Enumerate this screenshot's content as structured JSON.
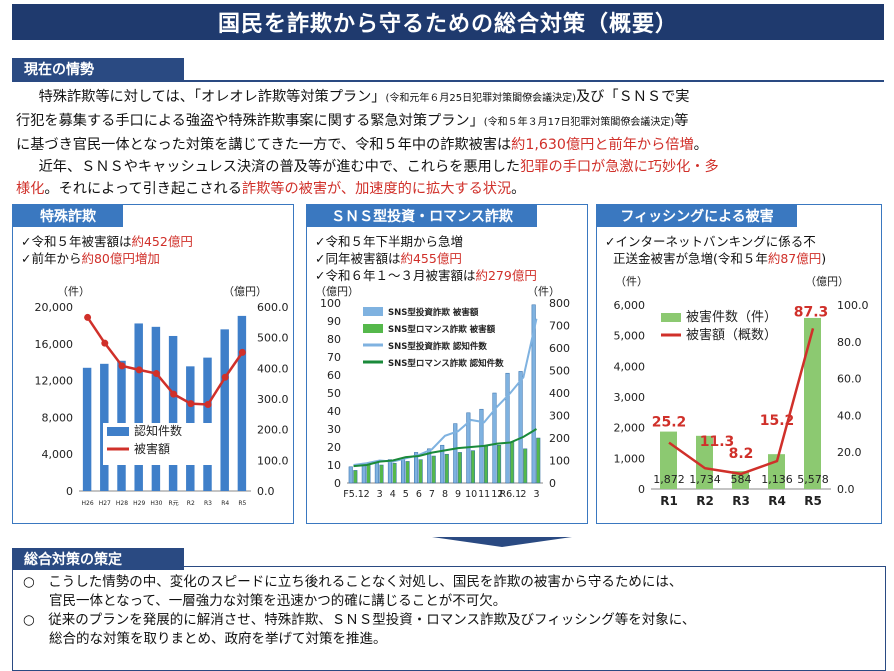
{
  "title": "国民を詐欺から守るための総合対策（概要）",
  "situation": {
    "heading": "現在の情勢",
    "p1_a": "特殊詐欺等に対しては、「オレオレ詐欺等対策プラン」",
    "p1_note1": "(令和元年６月25日犯罪対策閣僚会議決定)",
    "p1_b": "及び「ＳＮＳで実",
    "p2_a": "行犯を募集する手口による強盗や特殊詐欺事案に関する緊急対策プラン」",
    "p2_note2": "(令和５年３月17日犯罪対策閣僚会議決定)",
    "p2_b": "等",
    "p3_a": "に基づき官民一体となった対策を講じてきた一方で、令和５年中の詐欺被害は",
    "p3_red": "約1,630億円と前年から倍増",
    "p3_b": "。",
    "p4_a": "近年、ＳＮＳやキャッシュレス決済の普及等が進む中で、これらを悪用した",
    "p4_red": "犯罪の手口が急激に巧妙化・多",
    "p5_red1": "様化",
    "p5_a": "。それによって引き起こされる",
    "p5_red2": "詐欺等の被害が、加速度的に拡大する状況",
    "p5_b": "。"
  },
  "panel1": {
    "title": "特殊詐欺",
    "b1_a": "✓令和５年被害額は",
    "b1_red": "約452億円",
    "b2_a": "✓前年から",
    "b2_red": "約80億円増加"
  },
  "panel2": {
    "title": "ＳＮＳ型投資・ロマンス詐欺",
    "b1": "✓令和５年下半期から急増",
    "b2_a": "✓同年被害額は",
    "b2_red": "約455億円",
    "b3_a": "✓令和６年１～３月被害額は",
    "b3_red": "約279億円"
  },
  "panel3": {
    "title": "フィッシングによる被害",
    "b1": "✓インターネットバンキングに係る不",
    "b2_a": "正送金被害が急増(令和５年",
    "b2_red": "約87億円",
    "b2_b": ")"
  },
  "measures": {
    "heading": "総合対策の策定",
    "l1": "○　こうした情勢の中、変化のスピードに立ち後れることなく対処し、国民を詐欺の被害から守るためには、",
    "l2": "官民一体となって、一層強力な対策を迅速かつ的確に講じることが不可欠。",
    "l3": "○　従来のプランを発展的に解消させ、特殊詐欺、ＳＮＳ型投資・ロマンス詐欺及びフィッシング等を対象に、",
    "l4": "総合的な対策を取りまとめ、政府を挙げて対策を推進。"
  },
  "colors": {
    "navy": "#1f3a6e",
    "panel_blue": "#3a78c0",
    "red": "#d0302a",
    "green": "#8cc971"
  },
  "chart_data": [
    {
      "type": "bar",
      "categories": [
        "H26",
        "H27",
        "H28",
        "H29",
        "H30",
        "R元",
        "R2",
        "R3",
        "R4",
        "R5"
      ],
      "y_unit_left": "（件）",
      "y_unit_right": "（億円）",
      "yticks_left": [
        "0",
        "4,000",
        "8,000",
        "12,000",
        "16,000",
        "20,000"
      ],
      "yticks_right": [
        "0.0",
        "100.0",
        "200.0",
        "300.0",
        "400.0",
        "500.0",
        "600.0"
      ],
      "ylim_left": [
        0,
        20000
      ],
      "ylim_right": [
        0,
        600
      ],
      "series": [
        {
          "name": "認知件数",
          "kind": "bar",
          "axis": "left",
          "color": "#3f7fc9",
          "values": [
            13392,
            13824,
            14154,
            18212,
            17844,
            16851,
            13550,
            14498,
            17570,
            19033
          ]
        },
        {
          "name": "被害額",
          "kind": "line",
          "axis": "right",
          "color": "#d0302a",
          "values": [
            566,
            482,
            408,
            395,
            383,
            316,
            285,
            282,
            371,
            452
          ]
        }
      ],
      "legend_position": "center-left"
    },
    {
      "type": "bar",
      "categories": [
        "F5.1",
        "2",
        "3",
        "4",
        "5",
        "6",
        "7",
        "8",
        "9",
        "10",
        "11",
        "12",
        "R6.1",
        "2",
        "3"
      ],
      "y_unit_left": "（億円）",
      "y_unit_right": "（件）",
      "yticks_left": [
        "0",
        "10",
        "20",
        "30",
        "40",
        "50",
        "60",
        "70",
        "80",
        "90",
        "100"
      ],
      "yticks_right": [
        "0",
        "100",
        "200",
        "300",
        "400",
        "500",
        "600",
        "700",
        "800"
      ],
      "ylim_left": [
        0,
        100
      ],
      "ylim_right": [
        0,
        800
      ],
      "series": [
        {
          "name": "SNS型投資詐欺 被害額",
          "kind": "bar",
          "axis": "left",
          "color": "#7fb2e0",
          "values": [
            9,
            11,
            12,
            13,
            14,
            17,
            19,
            21,
            33,
            39,
            41,
            50,
            61,
            62,
            99
          ]
        },
        {
          "name": "SNS型ロマンス詐欺 被害額",
          "kind": "bar",
          "axis": "left",
          "color": "#55b84b",
          "values": [
            7,
            10,
            10,
            11,
            12,
            13,
            15,
            16,
            17,
            18,
            21,
            21,
            23,
            19,
            25
          ]
        },
        {
          "name": "SNS型投資詐欺 認知件数",
          "kind": "line",
          "axis": "right",
          "color": "#7fb2e0",
          "values": [
            80,
            88,
            100,
            95,
            110,
            125,
            150,
            210,
            230,
            280,
            270,
            340,
            400,
            470,
            730
          ]
        },
        {
          "name": "SNS型ロマンス詐欺 認知件数",
          "kind": "line",
          "axis": "right",
          "color": "#1a8a3a",
          "values": [
            75,
            80,
            95,
            100,
            115,
            120,
            135,
            145,
            155,
            160,
            165,
            175,
            180,
            205,
            240
          ]
        }
      ],
      "legend_position": "top-left"
    },
    {
      "type": "bar",
      "categories": [
        "R1",
        "R2",
        "R3",
        "R4",
        "R5"
      ],
      "y_unit_left": "（件）",
      "y_unit_right": "（億円）",
      "yticks_left": [
        "0",
        "1,000",
        "2,000",
        "3,000",
        "4,000",
        "5,000",
        "6,000"
      ],
      "yticks_right": [
        "0.0",
        "20.0",
        "40.0",
        "60.0",
        "80.0",
        "100.0"
      ],
      "ylim_left": [
        0,
        6000
      ],
      "ylim_right": [
        0,
        100
      ],
      "series": [
        {
          "name": "被害件数（件）",
          "kind": "bar",
          "axis": "left",
          "color": "#8cc971",
          "values": [
            1872,
            1734,
            584,
            1136,
            5578
          ],
          "labels": [
            "1,872",
            "1,734",
            "584",
            "1,136",
            "5,578"
          ]
        },
        {
          "name": "被害額（概数）",
          "kind": "line",
          "axis": "right",
          "color": "#d0302a",
          "values": [
            25.2,
            11.3,
            8.2,
            15.2,
            87.3
          ],
          "labels": [
            "25.2",
            "11.3",
            "8.2",
            "15.2",
            "87.3"
          ]
        }
      ],
      "legend_position": "top-center"
    }
  ]
}
